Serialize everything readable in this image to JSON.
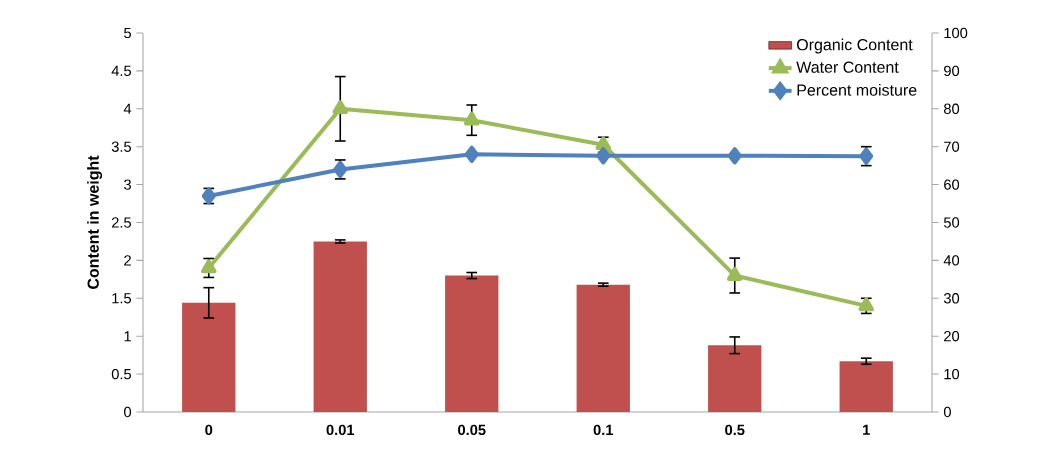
{
  "chart_data": {
    "type": "bar",
    "ylabel": "Content in weight",
    "categories": [
      "0",
      "0.01",
      "0.05",
      "0.1",
      "0.5",
      "1"
    ],
    "series": [
      {
        "name": "Organic Content",
        "color": "#c0504d",
        "values": [
          1.44,
          2.25,
          1.8,
          1.68,
          0.88,
          0.67
        ],
        "errors": [
          0.2,
          0.02,
          0.04,
          0.02,
          0.11,
          0.04
        ]
      },
      {
        "name": "Water Content",
        "type": "line",
        "axis": "y2",
        "marker": "triangle",
        "color": "#9bbb59",
        "values": [
          38,
          80,
          77,
          70.5,
          36,
          28
        ],
        "errors": [
          2.5,
          8.5,
          4,
          2,
          4.6,
          2
        ]
      },
      {
        "name": "Percent moisture",
        "type": "line",
        "axis": "y2",
        "marker": "diamond",
        "color": "#4f81bd",
        "values": [
          57,
          64,
          68,
          67.6,
          67.6,
          67.5
        ],
        "errors": [
          2,
          2.5,
          null,
          null,
          null,
          2.5
        ]
      }
    ],
    "ylim": [
      0,
      5
    ],
    "yticks": [
      0,
      0.5,
      1,
      1.5,
      2,
      2.5,
      3,
      3.5,
      4,
      4.5,
      5
    ],
    "y2lim": [
      0,
      100
    ],
    "y2ticks": [
      0,
      10,
      20,
      30,
      40,
      50,
      60,
      70,
      80,
      90,
      100
    ],
    "legend": "top right"
  }
}
